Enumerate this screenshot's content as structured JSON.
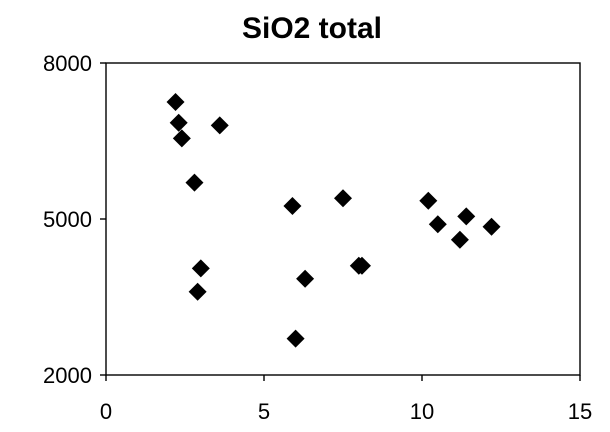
{
  "chart_data": {
    "type": "scatter",
    "title": "SiO2 total",
    "xlabel": "",
    "ylabel": "",
    "xlim": [
      0,
      15
    ],
    "ylim": [
      2000,
      8000
    ],
    "x_ticks": [
      0,
      5,
      10,
      15
    ],
    "y_ticks": [
      2000,
      5000,
      8000
    ],
    "x_tick_labels": [
      "0",
      "5",
      "10",
      "15"
    ],
    "y_tick_labels": [
      "2000",
      "5000",
      "8000"
    ],
    "grid": false,
    "legend": "none",
    "marker": "diamond",
    "marker_color": "#000000",
    "points": [
      {
        "x": 2.2,
        "y": 7250
      },
      {
        "x": 2.3,
        "y": 6850
      },
      {
        "x": 2.4,
        "y": 6550
      },
      {
        "x": 3.6,
        "y": 6800
      },
      {
        "x": 2.8,
        "y": 5700
      },
      {
        "x": 3.0,
        "y": 4050
      },
      {
        "x": 2.9,
        "y": 3600
      },
      {
        "x": 5.9,
        "y": 5250
      },
      {
        "x": 7.5,
        "y": 5400
      },
      {
        "x": 6.3,
        "y": 3850
      },
      {
        "x": 8.0,
        "y": 4100
      },
      {
        "x": 8.1,
        "y": 4100
      },
      {
        "x": 6.0,
        "y": 2700
      },
      {
        "x": 10.2,
        "y": 5350
      },
      {
        "x": 10.5,
        "y": 4900
      },
      {
        "x": 11.4,
        "y": 5050
      },
      {
        "x": 11.2,
        "y": 4600
      },
      {
        "x": 12.2,
        "y": 4850
      }
    ]
  }
}
